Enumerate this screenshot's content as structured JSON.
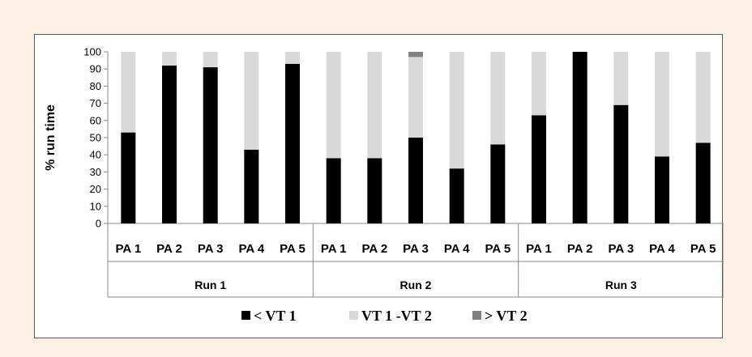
{
  "chart_data": {
    "type": "bar",
    "stacked": true,
    "ylabel": "% run time",
    "ylim": [
      0,
      100
    ],
    "yticks": [
      0,
      10,
      20,
      30,
      40,
      50,
      60,
      70,
      80,
      90,
      100
    ],
    "grid": false,
    "legend_position": "bottom",
    "groups": [
      "Run 1",
      "Run 2",
      "Run 3"
    ],
    "categories": [
      "PA 1",
      "PA 2",
      "PA 3",
      "PA 4",
      "PA 5"
    ],
    "series": [
      {
        "name": "< VT 1",
        "color": "#000000",
        "values": [
          [
            53,
            92,
            91,
            43,
            93
          ],
          [
            38,
            38,
            50,
            32,
            46
          ],
          [
            63,
            100,
            69,
            39,
            47
          ]
        ]
      },
      {
        "name": "VT 1 -VT 2",
        "color": "#d9d9d9",
        "values": [
          [
            47,
            8,
            9,
            57,
            7
          ],
          [
            62,
            62,
            47,
            68,
            54
          ],
          [
            37,
            0,
            31,
            61,
            53
          ]
        ]
      },
      {
        "name": "> VT 2",
        "color": "#808080",
        "values": [
          [
            0,
            0,
            0,
            0,
            0
          ],
          [
            0,
            0,
            3,
            0,
            0
          ],
          [
            0,
            0,
            0,
            0,
            0
          ]
        ]
      }
    ]
  }
}
